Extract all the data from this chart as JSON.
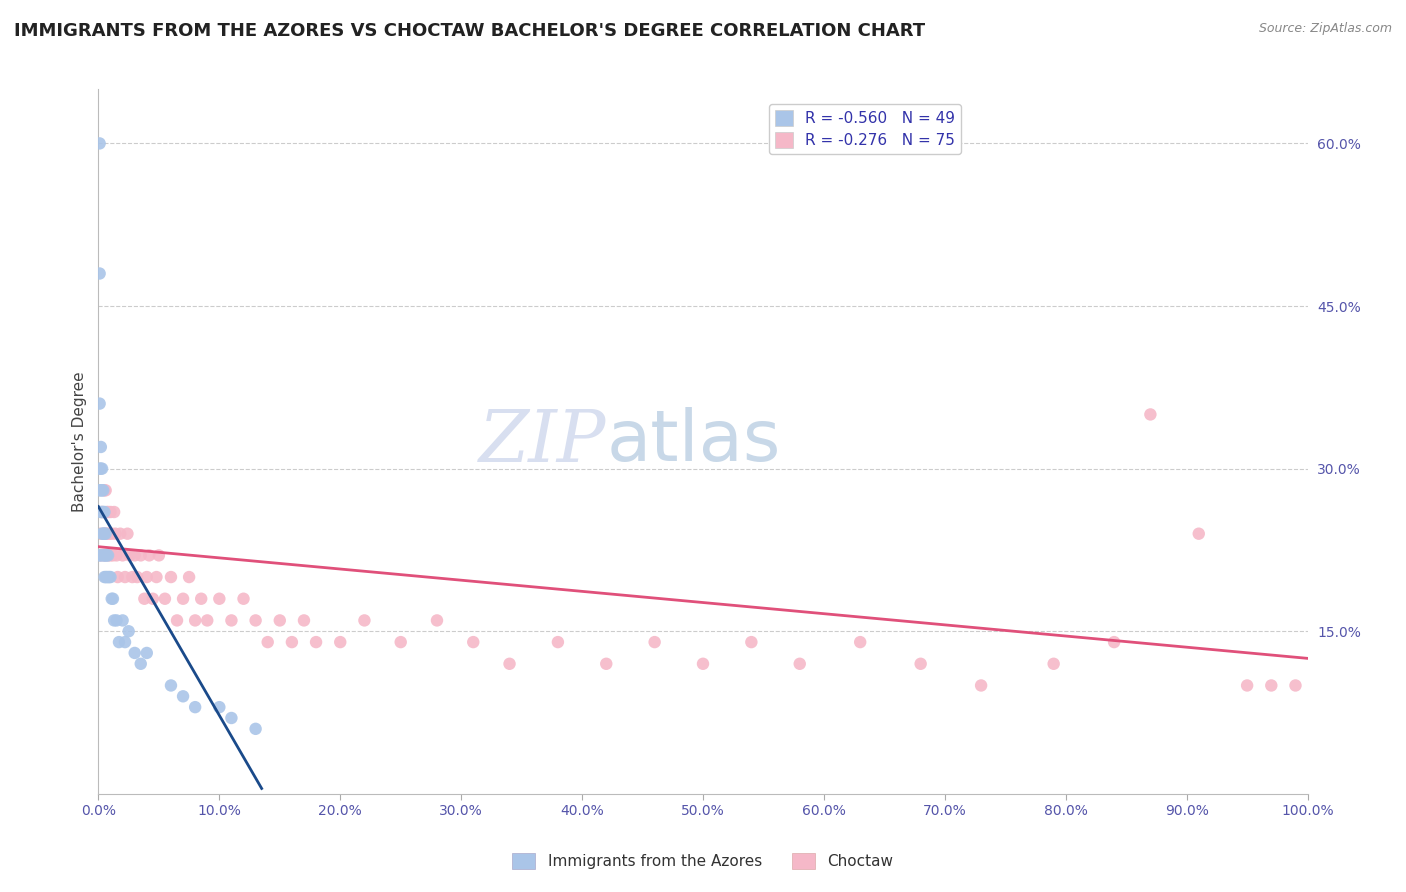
{
  "title": "IMMIGRANTS FROM THE AZORES VS CHOCTAW BACHELOR'S DEGREE CORRELATION CHART",
  "source_text": "Source: ZipAtlas.com",
  "ylabel": "Bachelor's Degree",
  "xlim": [
    0.0,
    1.0
  ],
  "ylim": [
    0.0,
    0.65
  ],
  "x_tick_labels": [
    "0.0%",
    "10.0%",
    "20.0%",
    "30.0%",
    "40.0%",
    "50.0%",
    "60.0%",
    "70.0%",
    "80.0%",
    "90.0%",
    "100.0%"
  ],
  "x_tick_vals": [
    0.0,
    0.1,
    0.2,
    0.3,
    0.4,
    0.5,
    0.6,
    0.7,
    0.8,
    0.9,
    1.0
  ],
  "y_tick_labels": [
    "15.0%",
    "30.0%",
    "45.0%",
    "60.0%"
  ],
  "y_tick_vals": [
    0.15,
    0.3,
    0.45,
    0.6
  ],
  "legend_entries": [
    {
      "label": "R = -0.560   N = 49",
      "color": "#aac5e8"
    },
    {
      "label": "R = -0.276   N = 75",
      "color": "#f5b8c8"
    }
  ],
  "series_blue": {
    "name": "Immigrants from the Azores",
    "color": "#aac5e8",
    "edge_color": "#aac5e8",
    "line_color": "#1a4a8a",
    "x": [
      0.001,
      0.001,
      0.001,
      0.001,
      0.001,
      0.001,
      0.002,
      0.002,
      0.002,
      0.002,
      0.002,
      0.003,
      0.003,
      0.003,
      0.003,
      0.004,
      0.004,
      0.004,
      0.004,
      0.005,
      0.005,
      0.005,
      0.005,
      0.006,
      0.006,
      0.006,
      0.007,
      0.007,
      0.008,
      0.008,
      0.009,
      0.01,
      0.011,
      0.012,
      0.013,
      0.015,
      0.017,
      0.02,
      0.022,
      0.025,
      0.03,
      0.035,
      0.04,
      0.06,
      0.07,
      0.08,
      0.1,
      0.11,
      0.13
    ],
    "y": [
      0.6,
      0.48,
      0.36,
      0.3,
      0.28,
      0.22,
      0.32,
      0.3,
      0.28,
      0.26,
      0.22,
      0.3,
      0.28,
      0.26,
      0.24,
      0.28,
      0.26,
      0.24,
      0.22,
      0.26,
      0.24,
      0.22,
      0.2,
      0.24,
      0.22,
      0.2,
      0.22,
      0.2,
      0.22,
      0.2,
      0.2,
      0.2,
      0.18,
      0.18,
      0.16,
      0.16,
      0.14,
      0.16,
      0.14,
      0.15,
      0.13,
      0.12,
      0.13,
      0.1,
      0.09,
      0.08,
      0.08,
      0.07,
      0.06
    ],
    "trendline_x": [
      0.0,
      0.135
    ],
    "trendline_y": [
      0.265,
      0.005
    ]
  },
  "series_pink": {
    "name": "Choctaw",
    "color": "#f5b8c8",
    "edge_color": "#f5b8c8",
    "line_color": "#e0507a",
    "x": [
      0.001,
      0.002,
      0.003,
      0.004,
      0.005,
      0.005,
      0.006,
      0.006,
      0.007,
      0.007,
      0.008,
      0.008,
      0.009,
      0.01,
      0.01,
      0.011,
      0.012,
      0.013,
      0.014,
      0.015,
      0.016,
      0.018,
      0.02,
      0.022,
      0.024,
      0.026,
      0.028,
      0.03,
      0.032,
      0.035,
      0.038,
      0.04,
      0.042,
      0.045,
      0.048,
      0.05,
      0.055,
      0.06,
      0.065,
      0.07,
      0.075,
      0.08,
      0.085,
      0.09,
      0.1,
      0.11,
      0.12,
      0.13,
      0.14,
      0.15,
      0.16,
      0.17,
      0.18,
      0.2,
      0.22,
      0.25,
      0.28,
      0.31,
      0.34,
      0.38,
      0.42,
      0.46,
      0.5,
      0.54,
      0.58,
      0.63,
      0.68,
      0.73,
      0.79,
      0.84,
      0.87,
      0.91,
      0.95,
      0.97,
      0.99
    ],
    "y": [
      0.24,
      0.22,
      0.26,
      0.24,
      0.22,
      0.28,
      0.24,
      0.28,
      0.24,
      0.26,
      0.22,
      0.26,
      0.24,
      0.22,
      0.26,
      0.24,
      0.22,
      0.26,
      0.24,
      0.22,
      0.2,
      0.24,
      0.22,
      0.2,
      0.24,
      0.22,
      0.2,
      0.22,
      0.2,
      0.22,
      0.18,
      0.2,
      0.22,
      0.18,
      0.2,
      0.22,
      0.18,
      0.2,
      0.16,
      0.18,
      0.2,
      0.16,
      0.18,
      0.16,
      0.18,
      0.16,
      0.18,
      0.16,
      0.14,
      0.16,
      0.14,
      0.16,
      0.14,
      0.14,
      0.16,
      0.14,
      0.16,
      0.14,
      0.12,
      0.14,
      0.12,
      0.14,
      0.12,
      0.14,
      0.12,
      0.14,
      0.12,
      0.1,
      0.12,
      0.14,
      0.35,
      0.24,
      0.1,
      0.1,
      0.1
    ],
    "trendline_x": [
      0.0,
      1.0
    ],
    "trendline_y": [
      0.228,
      0.125
    ]
  },
  "watermark_zip": "ZIP",
  "watermark_atlas": "atlas",
  "background_color": "#ffffff",
  "grid_color": "#cccccc",
  "title_fontsize": 13,
  "axis_label_fontsize": 11,
  "tick_fontsize": 10,
  "legend_fontsize": 11,
  "scatter_size": 80
}
